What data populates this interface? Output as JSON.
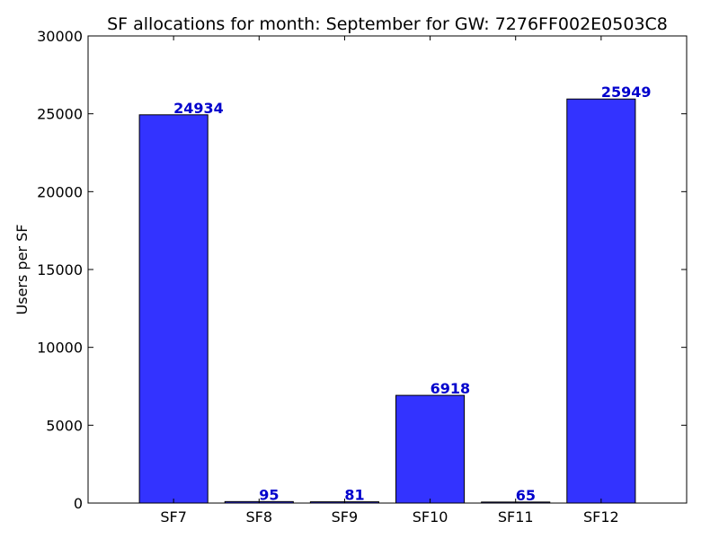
{
  "chart_data": {
    "type": "bar",
    "title": "SF allocations for month: September for GW: 7276FF002E0503C8",
    "xlabel": "",
    "ylabel": "Users per SF",
    "categories": [
      "SF7",
      "SF8",
      "SF9",
      "SF10",
      "SF11",
      "SF12"
    ],
    "values": [
      24934,
      95,
      81,
      6918,
      65,
      25949
    ],
    "data_labels": [
      "24934",
      "95",
      "81",
      "6918",
      "65",
      "25949"
    ],
    "ylim": [
      0,
      30000
    ],
    "yticks": [
      0,
      5000,
      10000,
      15000,
      20000,
      25000,
      30000
    ],
    "ytick_labels": [
      "0",
      "5000",
      "10000",
      "15000",
      "20000",
      "25000",
      "30000"
    ],
    "grid": false,
    "colors": {
      "bar_fill": "#3333ff",
      "bar_edge": "#000000",
      "label": "#0000cc"
    }
  }
}
